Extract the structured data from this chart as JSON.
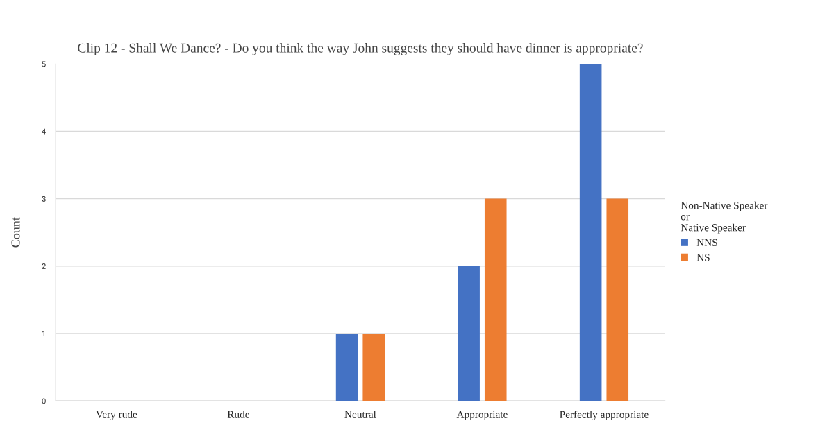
{
  "chart_data": {
    "type": "bar",
    "title": "Clip 12 - Shall We Dance? - Do you think the way John suggests they should have dinner is appropriate?",
    "ylabel": "Count",
    "legend_title": "Non-Native Speaker\nor\nNative Speaker",
    "categories": [
      "Very rude",
      "Rude",
      "Neutral",
      "Appropriate",
      "Perfectly appropriate"
    ],
    "series": [
      {
        "name": "NNS",
        "color": "#4472c4",
        "values": [
          0,
          0,
          1,
          2,
          5
        ]
      },
      {
        "name": "NS",
        "color": "#ed7d31",
        "values": [
          0,
          0,
          1,
          3,
          3
        ]
      }
    ],
    "ylim": [
      0,
      5
    ],
    "yticks": [
      0,
      1,
      2,
      3,
      4,
      5
    ],
    "grid": "y",
    "legend": "right"
  }
}
